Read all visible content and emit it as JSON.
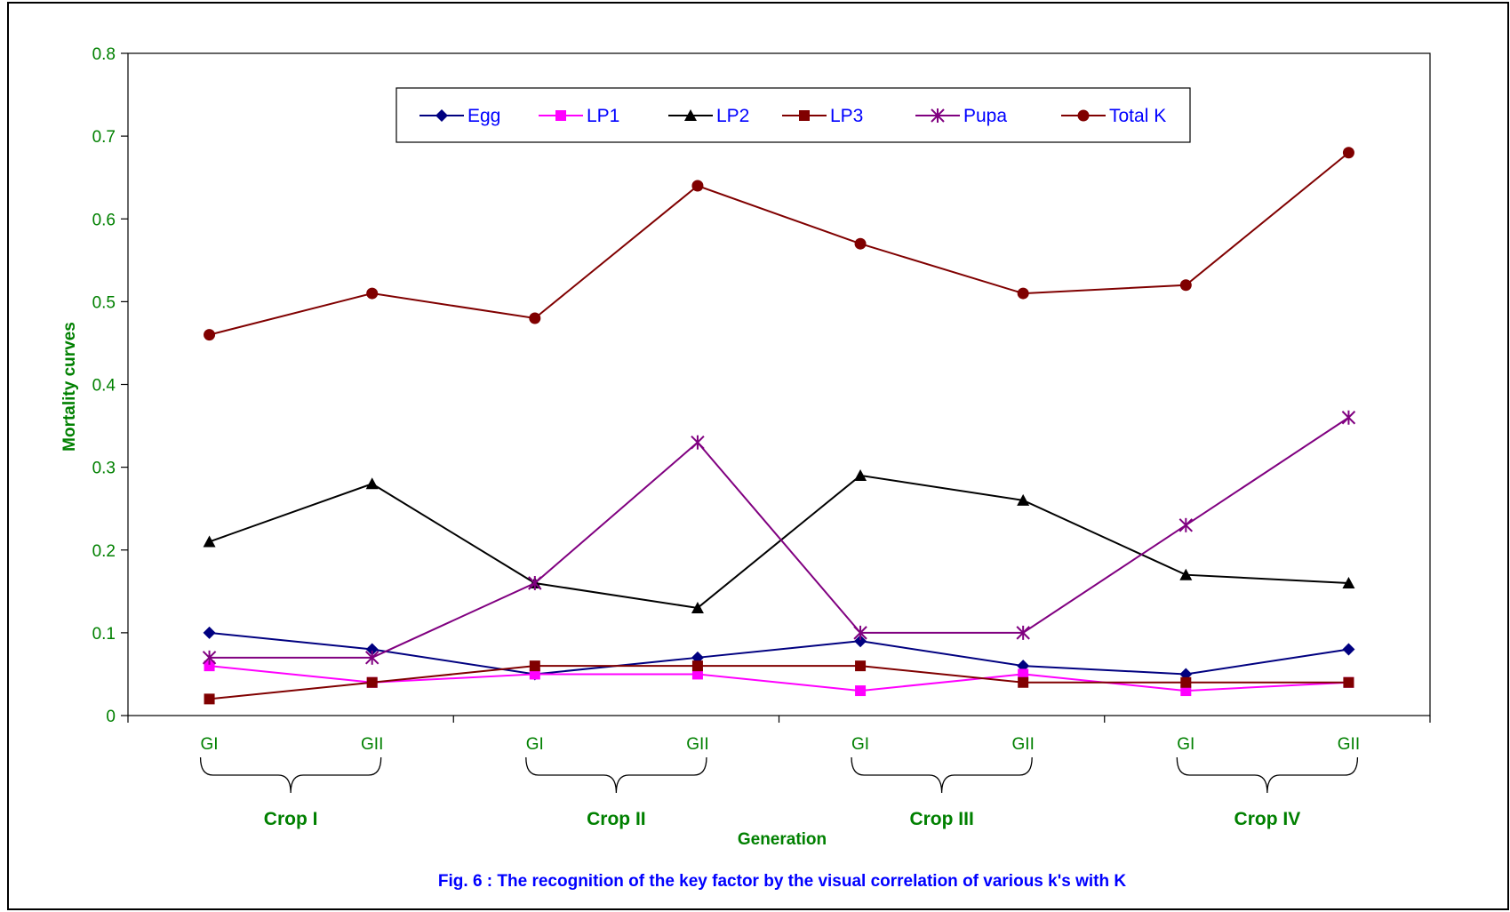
{
  "chart_data": {
    "type": "line",
    "title": "",
    "caption": "Fig. 6 : The recognition of the key factor by the visual correlation of various k's with K",
    "xlabel": "Generation",
    "ylabel": "Mortality curves",
    "ylim": [
      0,
      0.8
    ],
    "yticks": [
      "0",
      "0.1",
      "0.2",
      "0.3",
      "0.4",
      "0.5",
      "0.6",
      "0.7",
      "0.8"
    ],
    "categories": [
      "GI",
      "GII",
      "GI",
      "GII",
      "GI",
      "GII",
      "GI",
      "GII"
    ],
    "groups": [
      "Crop I",
      "Crop II",
      "Crop III",
      "Crop IV"
    ],
    "legend_position": "top-center",
    "grid": false,
    "series": [
      {
        "name": "Egg",
        "color": "#000080",
        "marker": "diamond",
        "values": [
          0.1,
          0.08,
          0.05,
          0.07,
          0.09,
          0.06,
          0.05,
          0.08
        ]
      },
      {
        "name": "LP1",
        "color": "#ff00ff",
        "marker": "square",
        "values": [
          0.06,
          0.04,
          0.05,
          0.05,
          0.03,
          0.05,
          0.03,
          0.04
        ]
      },
      {
        "name": "LP2",
        "color": "#000000",
        "marker": "triangle",
        "values": [
          0.21,
          0.28,
          0.16,
          0.13,
          0.29,
          0.26,
          0.17,
          0.16
        ]
      },
      {
        "name": "LP3",
        "color": "#800000",
        "marker": "square",
        "values": [
          0.02,
          0.04,
          0.06,
          0.06,
          0.06,
          0.04,
          0.04,
          0.04
        ]
      },
      {
        "name": "Pupa",
        "color": "#800080",
        "marker": "asterisk",
        "values": [
          0.07,
          0.07,
          0.16,
          0.33,
          0.1,
          0.1,
          0.23,
          0.36
        ]
      },
      {
        "name": "Total K",
        "color": "#800000",
        "marker": "circle",
        "values": [
          0.46,
          0.51,
          0.48,
          0.64,
          0.57,
          0.51,
          0.52,
          0.68
        ]
      }
    ]
  }
}
